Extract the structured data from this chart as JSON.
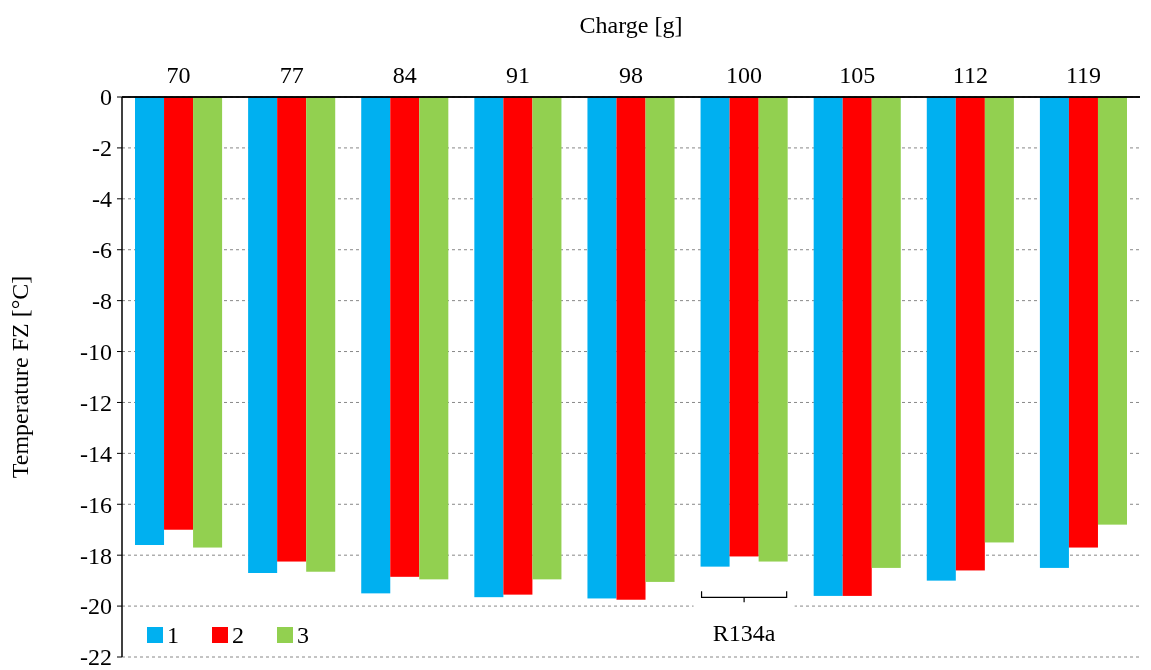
{
  "chart_data": {
    "type": "bar",
    "xlabel": "Charge [g]",
    "ylabel": "Temperature FZ [°C]",
    "categories": [
      "70",
      "77",
      "84",
      "91",
      "98",
      "100",
      "105",
      "112",
      "119"
    ],
    "series": [
      {
        "name": "1",
        "color": "#00b0f0",
        "values": [
          -17.6,
          -18.7,
          -19.5,
          -19.65,
          -19.7,
          -18.45,
          -19.6,
          -19,
          -18.5
        ]
      },
      {
        "name": "2",
        "color": "#ff0000",
        "values": [
          -17,
          -18.25,
          -18.85,
          -19.55,
          -19.75,
          -18.05,
          -19.6,
          -18.6,
          -17.7
        ]
      },
      {
        "name": "3",
        "color": "#92d050",
        "values": [
          -17.7,
          -18.65,
          -18.95,
          -18.95,
          -19.05,
          -18.25,
          -18.5,
          -17.5,
          -16.8
        ]
      }
    ],
    "ylim": [
      -22,
      0
    ],
    "yticks": [
      0,
      -2,
      -4,
      -6,
      -8,
      -10,
      -12,
      -14,
      -16,
      -18,
      -20,
      -22
    ],
    "grid": "y",
    "legend": "bottom left",
    "annotations": [
      "R134a"
    ]
  }
}
